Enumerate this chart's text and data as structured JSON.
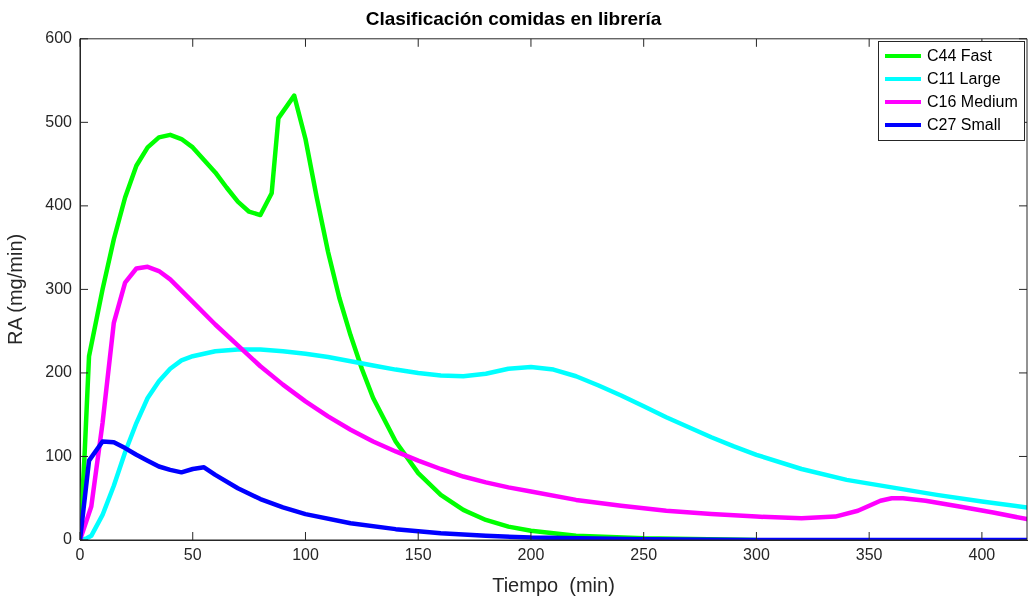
{
  "chart_data": {
    "type": "line",
    "title": "Clasificación comidas en librería",
    "xlabel": "Tiempo  (min)",
    "ylabel": "RA (mg/min)",
    "xlim": [
      0,
      420
    ],
    "xticks": [
      0,
      50,
      100,
      150,
      200,
      250,
      300,
      350,
      400
    ],
    "ylim": [
      0,
      600
    ],
    "yticks": [
      0,
      100,
      200,
      300,
      400,
      500,
      600
    ],
    "grid": false,
    "legend": "top right",
    "marker": "none",
    "line_style": "solid",
    "series": [
      {
        "name": "C44 Fast",
        "color": "#00ff00",
        "x": [
          0,
          2,
          4,
          10,
          15,
          20,
          25,
          30,
          35,
          40,
          45,
          50,
          55,
          60,
          65,
          70,
          75,
          80,
          85,
          88,
          95,
          100,
          105,
          110,
          115,
          120,
          125,
          130,
          140,
          150,
          160,
          170,
          180,
          190,
          200,
          220,
          250,
          300
        ],
        "values": [
          0,
          100,
          220,
          300,
          360,
          410,
          448,
          470,
          482,
          485,
          480,
          470,
          455,
          440,
          422,
          405,
          393,
          389,
          415,
          505,
          532,
          480,
          410,
          345,
          290,
          245,
          205,
          170,
          118,
          80,
          54,
          36,
          24,
          16,
          11,
          5,
          2,
          0
        ]
      },
      {
        "name": "C11 Large",
        "color": "#00ffff",
        "x": [
          0,
          3,
          5,
          10,
          15,
          20,
          25,
          30,
          35,
          40,
          45,
          50,
          60,
          70,
          80,
          90,
          100,
          110,
          120,
          130,
          140,
          150,
          160,
          170,
          180,
          190,
          200,
          210,
          220,
          230,
          240,
          250,
          260,
          270,
          280,
          290,
          300,
          320,
          340,
          360,
          380,
          400,
          420
        ],
        "values": [
          0,
          2,
          5,
          30,
          65,
          105,
          140,
          170,
          190,
          205,
          215,
          220,
          226,
          228,
          228,
          226,
          223,
          219,
          214,
          209,
          204,
          200,
          197,
          196,
          199,
          205,
          207,
          204,
          196,
          185,
          173,
          160,
          147,
          135,
          123,
          112,
          102,
          85,
          72,
          63,
          54,
          46,
          39
        ]
      },
      {
        "name": "C16 Medium",
        "color": "#ff00ff",
        "x": [
          0,
          5,
          10,
          15,
          20,
          25,
          30,
          35,
          40,
          50,
          60,
          70,
          80,
          90,
          100,
          110,
          120,
          130,
          140,
          150,
          160,
          170,
          180,
          190,
          200,
          220,
          240,
          260,
          280,
          300,
          320,
          335,
          345,
          355,
          360,
          365,
          375,
          390,
          405,
          420
        ],
        "values": [
          0,
          40,
          140,
          260,
          308,
          325,
          327,
          322,
          312,
          285,
          258,
          233,
          208,
          186,
          166,
          148,
          132,
          118,
          106,
          95,
          85,
          76,
          69,
          63,
          58,
          48,
          41,
          35,
          31,
          28,
          26,
          28,
          35,
          47,
          50,
          50,
          47,
          40,
          33,
          25
        ]
      },
      {
        "name": "C27 Small",
        "color": "#0000ff",
        "x": [
          0,
          4,
          10,
          15,
          20,
          25,
          30,
          35,
          40,
          45,
          50,
          55,
          60,
          70,
          80,
          90,
          100,
          120,
          140,
          160,
          180,
          200,
          250,
          300,
          420
        ],
        "values": [
          0,
          95,
          118,
          117,
          110,
          102,
          95,
          88,
          84,
          81,
          85,
          87,
          78,
          62,
          49,
          39,
          31,
          20,
          13,
          8,
          5,
          3,
          1,
          0,
          0
        ]
      }
    ]
  }
}
